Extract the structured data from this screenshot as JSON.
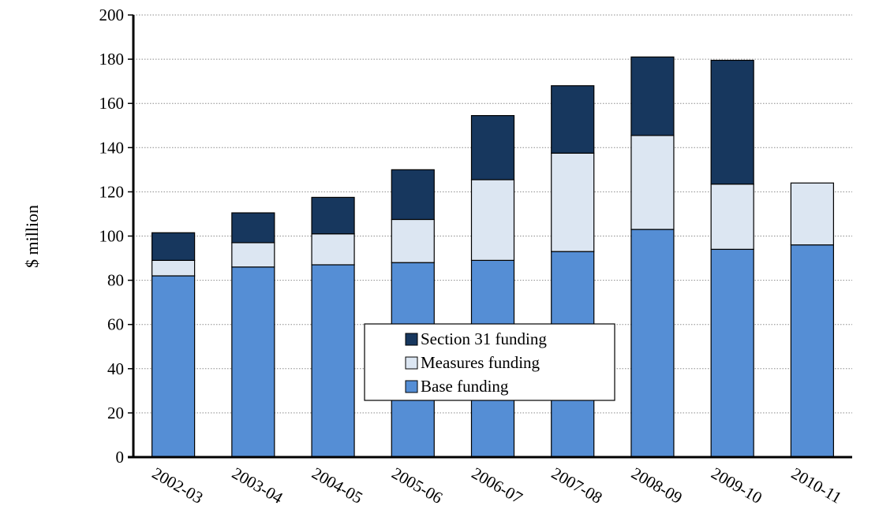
{
  "chart_data": {
    "type": "bar",
    "stacked": true,
    "categories": [
      "2002-03",
      "2003-04",
      "2004-05",
      "2005-06",
      "2006-07",
      "2007-08",
      "2008-09",
      "2009-10",
      "2010-11"
    ],
    "series": [
      {
        "name": "Base funding",
        "color": "#558ED5",
        "values": [
          82,
          86,
          87,
          88,
          89,
          93,
          103,
          94,
          96
        ]
      },
      {
        "name": "Measures funding",
        "color": "#DCE6F2",
        "values": [
          7,
          11,
          14,
          19.5,
          36.5,
          44.5,
          42.5,
          29.5,
          28
        ]
      },
      {
        "name": "Section 31 funding",
        "color": "#17375E",
        "values": [
          12.5,
          13.5,
          16.5,
          22.5,
          29,
          30.5,
          35.5,
          56,
          0
        ]
      }
    ],
    "ylabel": "$ million",
    "xlabel": "",
    "title": "",
    "ylim": [
      0,
      200
    ],
    "yticks": [
      0,
      20,
      40,
      60,
      80,
      100,
      120,
      140,
      160,
      180,
      200
    ],
    "grid": "horizontal dotted",
    "legend": {
      "placement": "center",
      "entries": [
        "Section 31 funding",
        "Measures funding",
        "Base funding"
      ]
    }
  }
}
